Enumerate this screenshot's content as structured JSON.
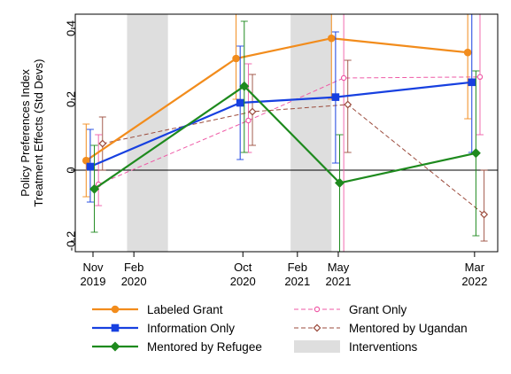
{
  "chart_data": {
    "type": "line",
    "title": "",
    "ylabel_lines": [
      "Policy Preferences Index",
      "Treatment Effects (Std Devs)"
    ],
    "xlabel": "",
    "ylim": [
      -0.23,
      0.44
    ],
    "yticks": [
      {
        "value": 0.4,
        "label": "0.4"
      },
      {
        "value": 0.2,
        "label": "0.2"
      },
      {
        "value": 0,
        "label": "0"
      },
      {
        "value": -0.2,
        "label": "-0.2"
      }
    ],
    "xticks": [
      {
        "t": 0,
        "line1": "Nov",
        "line2": "2019"
      },
      {
        "t": 3,
        "line1": "Feb",
        "line2": "2020"
      },
      {
        "t": 11,
        "line1": "Oct",
        "line2": "2020"
      },
      {
        "t": 15,
        "line1": "Feb",
        "line2": "2021"
      },
      {
        "t": 18,
        "line1": "May",
        "line2": "2021"
      },
      {
        "t": 28,
        "line1": "Mar",
        "line2": "2022"
      }
    ],
    "xlim": [
      -1.3,
      29.7
    ],
    "intervention_periods": [
      [
        2.5,
        5.5
      ],
      [
        14.5,
        17.5
      ]
    ],
    "series": [
      {
        "name": "Labeled Grant",
        "color": "#f28c1c",
        "marker": "circle",
        "style": "solid",
        "x": [
          -0.5,
          10.5,
          17.5,
          27.5
        ],
        "y": [
          0.027,
          0.315,
          0.372,
          0.332
        ],
        "ci": [
          [
            -0.075,
            0.13
          ],
          [
            0.2,
            0.44
          ],
          [
            0.2,
            0.44
          ],
          [
            0.145,
            0.44
          ]
        ]
      },
      {
        "name": "Information Only",
        "color": "#1740e0",
        "marker": "square",
        "style": "solid",
        "x": [
          -0.2,
          10.8,
          17.8,
          27.8
        ],
        "y": [
          0.01,
          0.19,
          0.206,
          0.248
        ],
        "ci": [
          [
            -0.09,
            0.115
          ],
          [
            0.03,
            0.35
          ],
          [
            0.02,
            0.39
          ],
          [
            0.05,
            0.44
          ]
        ]
      },
      {
        "name": "Mentored by Refugee",
        "color": "#1e8a1e",
        "marker": "diamond",
        "style": "solid",
        "x": [
          0.1,
          11.1,
          18.1,
          28.1
        ],
        "y": [
          -0.053,
          0.237,
          -0.036,
          0.048
        ],
        "ci": [
          [
            -0.175,
            0.07
          ],
          [
            0.05,
            0.42
          ],
          [
            -0.23,
            0.1
          ],
          [
            -0.185,
            0.28
          ]
        ]
      },
      {
        "name": "Grant Only",
        "color": "#ef5aa6",
        "marker": "circle-open",
        "style": "dashed",
        "x": [
          0.4,
          11.4,
          18.4,
          28.4
        ],
        "y": [
          -0.04,
          0.14,
          0.26,
          0.263
        ],
        "ci": [
          [
            -0.1,
            0.1
          ],
          [
            0.05,
            0.3
          ],
          [
            -0.23,
            0.44
          ],
          [
            0.1,
            0.44
          ]
        ]
      },
      {
        "name": "Mentored by Ugandan",
        "color": "#9b4b3c",
        "marker": "diamond-open",
        "style": "dashed",
        "x": [
          0.7,
          11.7,
          18.7,
          28.7
        ],
        "y": [
          0.075,
          0.165,
          0.185,
          -0.125
        ],
        "ci": [
          [
            0.0,
            0.15
          ],
          [
            0.07,
            0.27
          ],
          [
            0.05,
            0.31
          ],
          [
            -0.2,
            0.0
          ]
        ]
      }
    ],
    "legend": {
      "placement": "bottom",
      "items": [
        "Labeled Grant",
        "Grant Only",
        "Information Only",
        "Mentored by Ugandan",
        "Mentored by Refugee",
        "Interventions"
      ]
    },
    "shade_color": "#dedede",
    "grid": false
  }
}
